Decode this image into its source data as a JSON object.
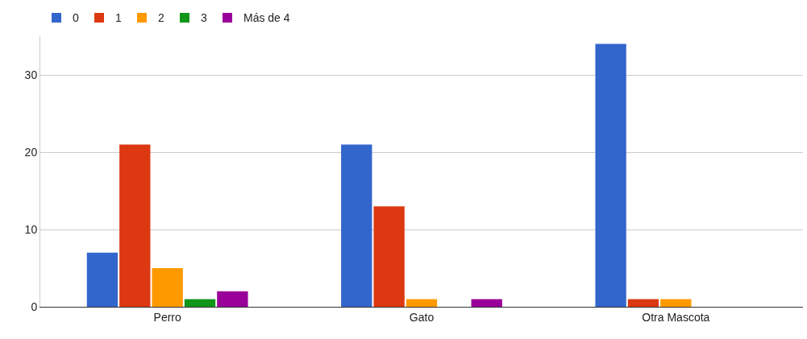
{
  "chart_data": {
    "type": "bar",
    "categories": [
      "Perro",
      "Gato",
      "Otra Mascota"
    ],
    "series": [
      {
        "name": "0",
        "color": "#3366cc",
        "values": [
          7,
          21,
          34
        ]
      },
      {
        "name": "1",
        "color": "#dc3912",
        "values": [
          21,
          13,
          1
        ]
      },
      {
        "name": "2",
        "color": "#ff9900",
        "values": [
          5,
          1,
          1
        ]
      },
      {
        "name": "3",
        "color": "#109618",
        "values": [
          1,
          0,
          0
        ]
      },
      {
        "name": "Más de 4",
        "color": "#990099",
        "values": [
          2,
          1,
          0
        ]
      }
    ],
    "ylim": [
      0,
      35
    ],
    "yticks": [
      0,
      10,
      20,
      30
    ],
    "grid": "y",
    "legend": "top left"
  }
}
